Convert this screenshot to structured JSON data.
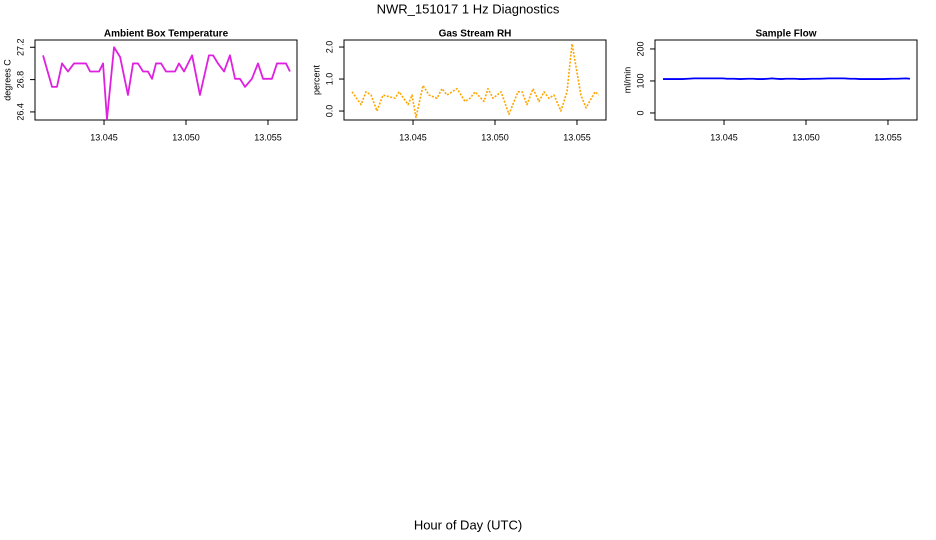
{
  "title": "NWR_151017  1 Hz Diagnostics",
  "xlabel": "Hour of Day (UTC)",
  "chart_data": [
    {
      "type": "line",
      "title": "Ambient Box Temperature",
      "ylabel": "degrees C",
      "color": "#e020e0",
      "linestyle": "solid",
      "x": [
        13.04128,
        13.04183,
        13.04213,
        13.04244,
        13.0428,
        13.04317,
        13.0439,
        13.04415,
        13.0447,
        13.04494,
        13.04518,
        13.04561,
        13.04598,
        13.04646,
        13.04677,
        13.04707,
        13.04738,
        13.04768,
        13.04793,
        13.04817,
        13.04848,
        13.04878,
        13.04933,
        13.04957,
        13.04988,
        13.05037,
        13.05085,
        13.0514,
        13.05165,
        13.05195,
        13.05232,
        13.05268,
        13.05299,
        13.05329,
        13.0536,
        13.05402,
        13.05439,
        13.0547,
        13.05524,
        13.05555,
        13.0561,
        13.05634
      ],
      "values": [
        27.1,
        26.71,
        26.71,
        27.0,
        26.9,
        27.0,
        27.0,
        26.9,
        26.9,
        27.0,
        26.31,
        27.2,
        27.08,
        26.61,
        27.0,
        27.0,
        26.9,
        26.9,
        26.81,
        27.0,
        27.0,
        26.9,
        26.9,
        27.0,
        26.9,
        27.1,
        26.61,
        27.1,
        27.1,
        27.0,
        26.9,
        27.1,
        26.81,
        26.81,
        26.71,
        26.81,
        27.0,
        26.81,
        26.81,
        27.0,
        27.0,
        26.9
      ],
      "xlim": [
        13.04079,
        13.05677
      ],
      "xticks": [
        13.045,
        {
          "value": 13.05,
          "label": "13.050"
        },
        13.055
      ],
      "ylim": [
        26.3,
        27.29
      ],
      "yticks": [
        26.4,
        26.8,
        27.2
      ]
    },
    {
      "type": "line",
      "title": "Gas Stream RH",
      "ylabel": "percent",
      "color": "#ffa500",
      "linestyle": "dotted",
      "x": [
        13.04128,
        13.04183,
        13.04213,
        13.04244,
        13.0428,
        13.04317,
        13.0439,
        13.04415,
        13.0447,
        13.04494,
        13.04518,
        13.04561,
        13.04598,
        13.04646,
        13.04677,
        13.04707,
        13.04738,
        13.04768,
        13.04793,
        13.04817,
        13.04848,
        13.04878,
        13.04933,
        13.04957,
        13.04988,
        13.05037,
        13.05085,
        13.0514,
        13.05165,
        13.05195,
        13.05232,
        13.05268,
        13.05299,
        13.05329,
        13.0536,
        13.05402,
        13.05439,
        13.0547,
        13.05524,
        13.05555,
        13.0561,
        13.05634
      ],
      "values": [
        0.6,
        0.2,
        0.6,
        0.5,
        0.0,
        0.5,
        0.4,
        0.6,
        0.2,
        0.5,
        -0.2,
        0.8,
        0.5,
        0.4,
        0.7,
        0.5,
        0.6,
        0.7,
        0.5,
        0.3,
        0.4,
        0.6,
        0.3,
        0.7,
        0.4,
        0.6,
        -0.1,
        0.6,
        0.6,
        0.2,
        0.7,
        0.3,
        0.6,
        0.4,
        0.5,
        0.0,
        0.6,
        2.1,
        0.5,
        0.1,
        0.6,
        0.5
      ],
      "xlim": [
        13.04079,
        13.05677
      ],
      "xticks": [
        13.045,
        {
          "value": 13.05,
          "label": "13.050"
        },
        13.055
      ],
      "ylim": [
        -0.28,
        2.22
      ],
      "yticks": [
        {
          "value": 0,
          "label": "0.0"
        },
        {
          "value": 1,
          "label": "1.0"
        },
        {
          "value": 2,
          "label": "2.0"
        }
      ]
    },
    {
      "type": "line",
      "title": "Sample Flow",
      "ylabel": "ml/min",
      "color": "#0000ff",
      "linestyle": "solid",
      "x": [
        13.04128,
        13.04183,
        13.04213,
        13.04244,
        13.0428,
        13.04317,
        13.0439,
        13.04415,
        13.0447,
        13.04494,
        13.04518,
        13.04561,
        13.04598,
        13.04646,
        13.04677,
        13.04707,
        13.04738,
        13.04768,
        13.04793,
        13.04817,
        13.04848,
        13.04878,
        13.04933,
        13.04957,
        13.04988,
        13.05037,
        13.05085,
        13.0514,
        13.05165,
        13.05195,
        13.05232,
        13.05268,
        13.05299,
        13.05329,
        13.0536,
        13.05402,
        13.05439,
        13.0547,
        13.05524,
        13.05555,
        13.0561,
        13.05634
      ],
      "values": [
        106,
        106,
        106,
        106,
        107,
        108,
        108,
        108,
        108,
        108,
        107,
        107,
        106,
        107,
        107,
        106,
        106,
        107,
        108,
        107,
        106,
        107,
        107,
        106,
        106,
        107,
        107,
        108,
        108,
        108,
        108,
        107,
        107,
        106,
        106,
        106,
        106,
        106,
        107,
        107,
        108,
        107
      ],
      "xlim": [
        13.04079,
        13.05677
      ],
      "xticks": [
        13.045,
        {
          "value": 13.05,
          "label": "13.050"
        },
        13.055
      ],
      "ylim": [
        -22,
        228
      ],
      "yticks": [
        0,
        100,
        200
      ]
    }
  ]
}
